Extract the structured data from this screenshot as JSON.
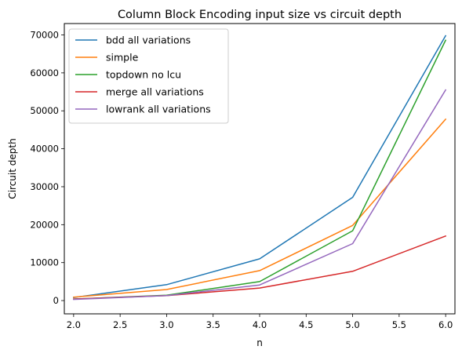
{
  "chart_data": {
    "type": "line",
    "title": "Column Block Encoding input size vs circuit depth",
    "xlabel": "n",
    "ylabel": "Circuit depth",
    "x": [
      2,
      3,
      4,
      5,
      6
    ],
    "xlim": [
      1.9,
      6.1
    ],
    "ylim": [
      -3500,
      73000
    ],
    "xticks": [
      "2.0",
      "2.5",
      "3.0",
      "3.5",
      "4.0",
      "4.5",
      "5.0",
      "5.5",
      "6.0"
    ],
    "yticks": [
      "0",
      "10000",
      "20000",
      "30000",
      "40000",
      "50000",
      "60000",
      "70000"
    ],
    "grid": false,
    "legend_position": "top-left",
    "series": [
      {
        "name": "bdd all variations",
        "color": "#1f77b4",
        "values": [
          800,
          4200,
          11000,
          27200,
          69800
        ]
      },
      {
        "name": "simple",
        "color": "#ff7f0e",
        "values": [
          900,
          2900,
          7900,
          19800,
          47800
        ]
      },
      {
        "name": "topdown no lcu",
        "color": "#2ca02c",
        "values": [
          400,
          1400,
          5000,
          18400,
          68600
        ]
      },
      {
        "name": "merge all variations",
        "color": "#d62728",
        "values": [
          400,
          1300,
          3300,
          7700,
          17000
        ]
      },
      {
        "name": "lowrank all variations",
        "color": "#9467bd",
        "values": [
          300,
          1300,
          4100,
          15000,
          55500
        ]
      }
    ]
  }
}
